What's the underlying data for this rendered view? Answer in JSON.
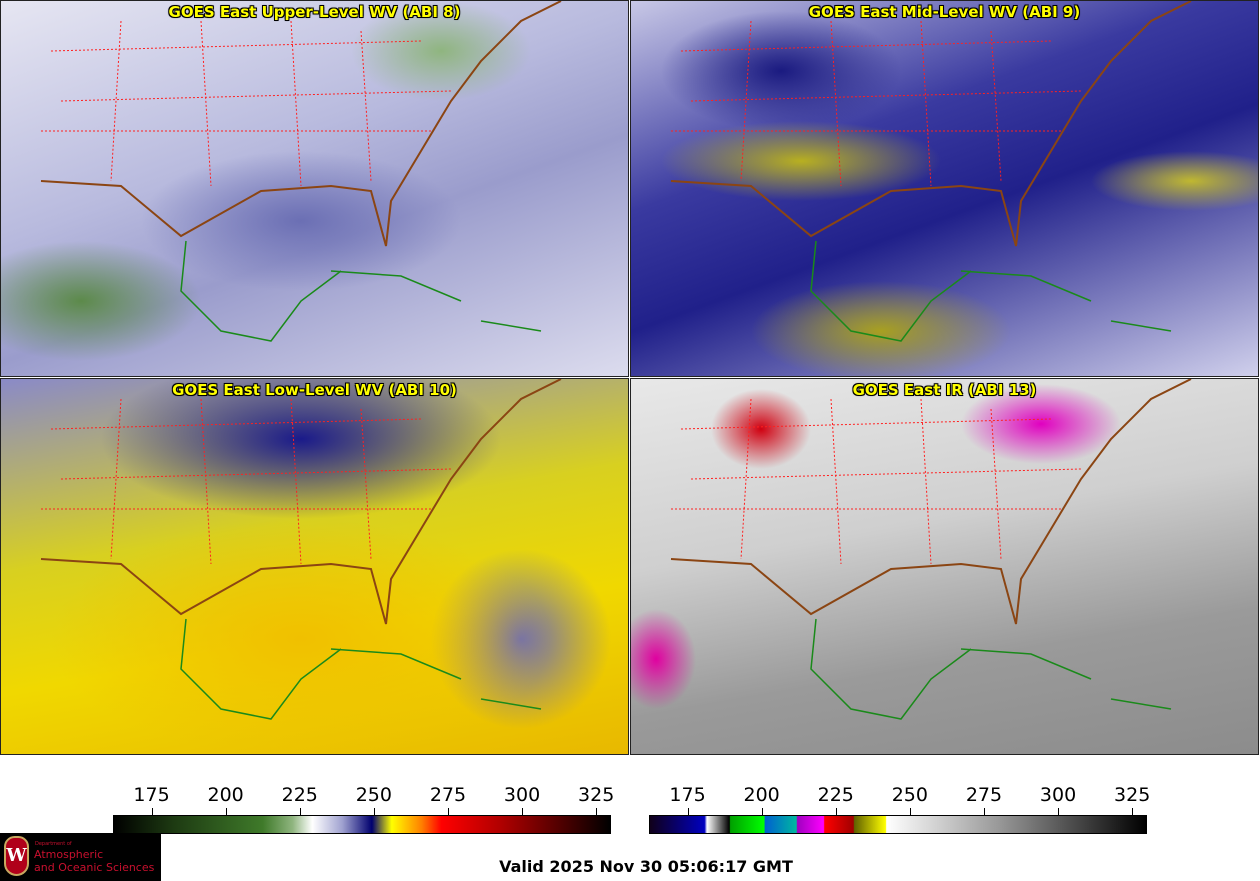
{
  "panels": [
    {
      "title": "GOES East Upper-Level WV (ABI 8)"
    },
    {
      "title": "GOES East Mid-Level WV (ABI 9)"
    },
    {
      "title": "GOES East Low-Level WV (ABI 10)"
    },
    {
      "title": "GOES East IR (ABI 13)"
    }
  ],
  "colorbars": [
    {
      "name": "water-vapor",
      "ticks": [
        "175",
        "200",
        "225",
        "250",
        "275",
        "300",
        "325"
      ],
      "range": [
        162,
        330
      ]
    },
    {
      "name": "infrared",
      "ticks": [
        "175",
        "200",
        "225",
        "250",
        "275",
        "300",
        "325"
      ],
      "range": [
        162,
        330
      ]
    }
  ],
  "colors": {
    "title": "#ffff00",
    "state_borders": "#ff2020",
    "coastline_land": "#8b4513",
    "coastline_sea": "#1a8a1a"
  },
  "logo": {
    "line1": "Department of",
    "line2": "Atmospheric",
    "line3": "and Oceanic Sciences",
    "crest_letter": "W"
  },
  "valid_time": "Valid 2025 Nov 30 05:06:17 GMT"
}
